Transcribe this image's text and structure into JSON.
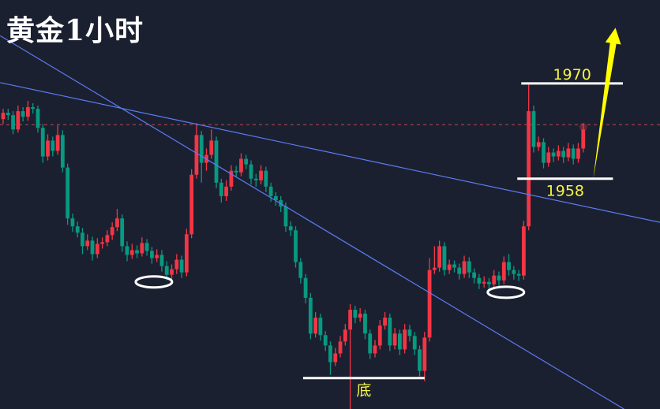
{
  "title": "黄金1小时",
  "colors": {
    "background": "#1b2030",
    "up": "#f23645",
    "down": "#089981",
    "trendline": "#5b7cf5",
    "level": "#ffffff",
    "label": "#f5f542",
    "arrow": "#ffff00",
    "price_line": "#8a3a45"
  },
  "chart_data": {
    "type": "candlestick",
    "title": "黄金1小时",
    "ylim": [
      1929,
      1980.5
    ],
    "grid": false,
    "current_price": 1964.8,
    "candles": [
      [
        1965.5,
        1966.8,
        1964.9,
        1966.3
      ],
      [
        1966.3,
        1966.8,
        1965.4,
        1966.0
      ],
      [
        1966.0,
        1966.5,
        1963.6,
        1964.2
      ],
      [
        1964.2,
        1967.2,
        1963.8,
        1966.5
      ],
      [
        1966.5,
        1967.0,
        1965.2,
        1965.8
      ],
      [
        1965.8,
        1967.8,
        1965.3,
        1967.0
      ],
      [
        1967.0,
        1967.5,
        1966.2,
        1966.8
      ],
      [
        1966.8,
        1967.2,
        1963.8,
        1964.4
      ],
      [
        1964.4,
        1964.9,
        1960.0,
        1960.8
      ],
      [
        1960.8,
        1963.6,
        1960.3,
        1962.8
      ],
      [
        1962.8,
        1963.3,
        1960.8,
        1961.5
      ],
      [
        1961.5,
        1964.7,
        1961.0,
        1963.5
      ],
      [
        1963.5,
        1964.1,
        1958.8,
        1959.4
      ],
      [
        1959.4,
        1959.9,
        1952.2,
        1953.0
      ],
      [
        1953.0,
        1953.6,
        1951.3,
        1952.0
      ],
      [
        1952.0,
        1952.6,
        1950.6,
        1951.2
      ],
      [
        1951.2,
        1951.8,
        1948.5,
        1949.5
      ],
      [
        1949.5,
        1951.0,
        1949.0,
        1950.2
      ],
      [
        1950.2,
        1950.7,
        1947.7,
        1948.5
      ],
      [
        1948.5,
        1950.5,
        1948.0,
        1949.8
      ],
      [
        1949.8,
        1950.6,
        1949.2,
        1950.0
      ],
      [
        1950.0,
        1951.5,
        1949.5,
        1950.9
      ],
      [
        1950.9,
        1952.5,
        1950.3,
        1951.9
      ],
      [
        1951.9,
        1954.2,
        1951.4,
        1953.0
      ],
      [
        1953.0,
        1953.5,
        1948.8,
        1949.5
      ],
      [
        1949.5,
        1950.1,
        1947.6,
        1948.4
      ],
      [
        1948.4,
        1949.8,
        1947.9,
        1949.0
      ],
      [
        1949.0,
        1949.6,
        1948.0,
        1948.6
      ],
      [
        1948.6,
        1950.6,
        1948.2,
        1949.9
      ],
      [
        1949.9,
        1950.4,
        1948.3,
        1948.9
      ],
      [
        1948.9,
        1949.4,
        1947.3,
        1948.0
      ],
      [
        1948.0,
        1949.1,
        1947.5,
        1948.4
      ],
      [
        1948.4,
        1949.0,
        1946.3,
        1947.0
      ],
      [
        1947.0,
        1947.6,
        1945.2,
        1945.9
      ],
      [
        1945.9,
        1947.2,
        1945.2,
        1946.6
      ],
      [
        1946.6,
        1948.5,
        1946.0,
        1947.8
      ],
      [
        1947.8,
        1948.3,
        1945.5,
        1946.2
      ],
      [
        1946.2,
        1951.7,
        1945.7,
        1951.0
      ],
      [
        1951.0,
        1959.2,
        1950.5,
        1958.5
      ],
      [
        1958.5,
        1965.0,
        1958.0,
        1963.5
      ],
      [
        1963.5,
        1964.0,
        1957.5,
        1960.0
      ],
      [
        1960.0,
        1961.8,
        1959.0,
        1961.0
      ],
      [
        1961.0,
        1964.2,
        1960.5,
        1962.8
      ],
      [
        1962.8,
        1963.3,
        1956.8,
        1957.5
      ],
      [
        1957.5,
        1958.0,
        1955.0,
        1955.8
      ],
      [
        1955.8,
        1957.8,
        1955.2,
        1957.0
      ],
      [
        1957.0,
        1959.7,
        1956.5,
        1959.0
      ],
      [
        1959.0,
        1959.6,
        1958.2,
        1958.8
      ],
      [
        1958.8,
        1961.2,
        1958.3,
        1960.5
      ],
      [
        1960.5,
        1961.0,
        1959.2,
        1959.8
      ],
      [
        1959.8,
        1960.3,
        1957.3,
        1958.0
      ],
      [
        1958.0,
        1958.6,
        1957.0,
        1957.8
      ],
      [
        1957.8,
        1959.7,
        1957.3,
        1959.0
      ],
      [
        1959.0,
        1959.5,
        1956.3,
        1957.0
      ],
      [
        1957.0,
        1957.5,
        1955.1,
        1955.8
      ],
      [
        1955.8,
        1956.3,
        1954.6,
        1955.3
      ],
      [
        1955.3,
        1955.8,
        1953.8,
        1954.5
      ],
      [
        1954.5,
        1955.0,
        1951.3,
        1952.0
      ],
      [
        1952.0,
        1952.6,
        1950.8,
        1951.5
      ],
      [
        1951.5,
        1952.0,
        1946.8,
        1947.5
      ],
      [
        1947.5,
        1948.0,
        1944.8,
        1945.5
      ],
      [
        1945.5,
        1946.0,
        1942.3,
        1943.0
      ],
      [
        1943.0,
        1943.6,
        1937.8,
        1938.5
      ],
      [
        1938.5,
        1941.2,
        1938.0,
        1940.5
      ],
      [
        1940.5,
        1941.0,
        1937.6,
        1938.3
      ],
      [
        1938.3,
        1938.8,
        1936.3,
        1937.0
      ],
      [
        1937.0,
        1937.5,
        1933.3,
        1934.9
      ],
      [
        1934.9,
        1936.7,
        1934.4,
        1936.0
      ],
      [
        1936.0,
        1938.2,
        1935.5,
        1937.5
      ],
      [
        1937.5,
        1939.7,
        1937.0,
        1939.0
      ],
      [
        1939.0,
        1942.2,
        1929.0,
        1941.5
      ],
      [
        1941.5,
        1942.0,
        1939.8,
        1940.5
      ],
      [
        1940.5,
        1941.7,
        1940.0,
        1941.0
      ],
      [
        1941.0,
        1941.5,
        1937.8,
        1938.5
      ],
      [
        1938.5,
        1939.0,
        1935.3,
        1936.0
      ],
      [
        1936.0,
        1937.7,
        1935.5,
        1937.0
      ],
      [
        1937.0,
        1940.2,
        1936.5,
        1939.5
      ],
      [
        1939.5,
        1941.2,
        1939.0,
        1940.5
      ],
      [
        1940.5,
        1941.0,
        1936.3,
        1937.0
      ],
      [
        1937.0,
        1939.2,
        1936.5,
        1938.5
      ],
      [
        1938.5,
        1939.0,
        1935.8,
        1936.5
      ],
      [
        1936.5,
        1939.7,
        1936.0,
        1939.0
      ],
      [
        1939.0,
        1939.6,
        1937.5,
        1938.2
      ],
      [
        1938.2,
        1938.7,
        1935.8,
        1936.5
      ],
      [
        1936.5,
        1937.0,
        1933.1,
        1933.8
      ],
      [
        1933.8,
        1938.7,
        1932.5,
        1938.0
      ],
      [
        1938.0,
        1948.0,
        1937.5,
        1946.5
      ],
      [
        1946.5,
        1949.5,
        1946.0,
        1946.8
      ],
      [
        1946.8,
        1950.2,
        1946.3,
        1949.5
      ],
      [
        1949.5,
        1950.0,
        1945.8,
        1946.5
      ],
      [
        1946.5,
        1947.8,
        1946.0,
        1947.2
      ],
      [
        1947.2,
        1947.7,
        1946.2,
        1946.8
      ],
      [
        1946.8,
        1947.3,
        1945.3,
        1946.0
      ],
      [
        1946.0,
        1948.3,
        1945.5,
        1947.6
      ],
      [
        1947.6,
        1948.1,
        1945.5,
        1946.2
      ],
      [
        1946.2,
        1946.7,
        1944.8,
        1945.5
      ],
      [
        1945.5,
        1946.0,
        1944.1,
        1944.8
      ],
      [
        1944.8,
        1945.7,
        1944.3,
        1945.0
      ],
      [
        1945.0,
        1945.5,
        1944.0,
        1944.7
      ],
      [
        1944.7,
        1946.5,
        1944.2,
        1945.8
      ],
      [
        1945.8,
        1946.3,
        1944.5,
        1945.2
      ],
      [
        1945.2,
        1948.2,
        1944.7,
        1947.5
      ],
      [
        1947.5,
        1948.5,
        1945.8,
        1946.5
      ],
      [
        1946.5,
        1947.0,
        1945.3,
        1946.0
      ],
      [
        1946.0,
        1946.5,
        1945.1,
        1945.8
      ],
      [
        1945.8,
        1952.7,
        1945.3,
        1952.0
      ],
      [
        1952.0,
        1970.0,
        1951.5,
        1966.5
      ],
      [
        1966.5,
        1967.2,
        1961.3,
        1962.0
      ],
      [
        1962.0,
        1963.3,
        1961.5,
        1962.6
      ],
      [
        1962.6,
        1963.1,
        1959.3,
        1960.0
      ],
      [
        1960.0,
        1962.0,
        1959.5,
        1961.3
      ],
      [
        1961.3,
        1961.8,
        1960.1,
        1960.8
      ],
      [
        1960.8,
        1962.2,
        1960.3,
        1961.5
      ],
      [
        1961.5,
        1962.0,
        1960.0,
        1960.7
      ],
      [
        1960.7,
        1962.5,
        1960.2,
        1961.8
      ],
      [
        1961.8,
        1962.3,
        1959.8,
        1960.5
      ],
      [
        1960.5,
        1962.5,
        1960.0,
        1961.8
      ],
      [
        1961.8,
        1965.0,
        1961.3,
        1964.2
      ]
    ],
    "trendlines": [
      {
        "from": {
          "index": -0.6,
          "price": 1970.1
        },
        "to": {
          "index": 132.5,
          "price": 1952.5
        }
      },
      {
        "from": {
          "index": -0.6,
          "price": 1976.0
        },
        "to": {
          "index": 125.2,
          "price": 1929.0
        }
      }
    ],
    "levels": [
      {
        "price": 1970,
        "from_index": 104.5,
        "to_index": 125,
        "label": "1970",
        "label_position": "above"
      },
      {
        "price": 1958,
        "from_index": 103.7,
        "to_index": 123,
        "label": "1958",
        "label_position": "below"
      },
      {
        "price": 1932.9,
        "from_index": 60.5,
        "to_index": 85,
        "label": "底",
        "label_position": "below"
      }
    ],
    "ellipses": [
      {
        "index": 30.4,
        "price": 1945.0
      },
      {
        "index": 101.4,
        "price": 1943.7
      }
    ],
    "arrow": {
      "from": {
        "index": 119,
        "price": 1957.9
      },
      "to": {
        "index": 123.5,
        "price": 1977.0
      },
      "direction": "up"
    }
  }
}
